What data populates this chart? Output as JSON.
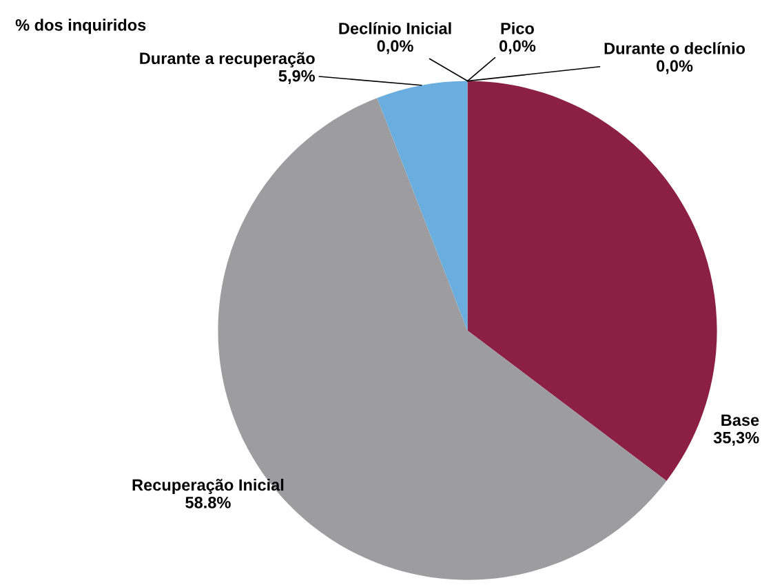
{
  "chart_data": {
    "type": "pie",
    "title": "% dos inquiridos",
    "categories": [
      "Base",
      "Recuperação Inicial",
      "Durante a recuperação",
      "Declínio Inicial",
      "Pico",
      "Durante o declínio"
    ],
    "values": [
      35.3,
      58.8,
      5.9,
      0.0,
      0.0,
      0.0
    ],
    "value_labels": [
      "35,3%",
      "58.8%",
      "5,9%",
      "0,0%",
      "0,0%",
      "0,0%"
    ],
    "colors": [
      "#8b2044",
      "#9d9d9f",
      "#6aaee0",
      "#4f81bd",
      "#c0504d",
      "#f79646"
    ],
    "legend": false
  }
}
